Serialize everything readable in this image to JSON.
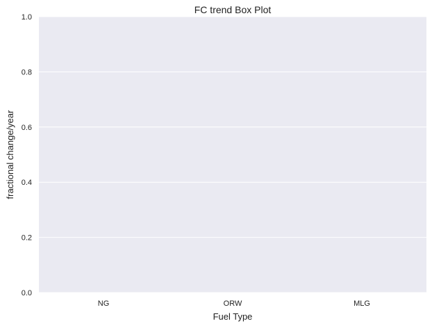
{
  "chart_data": {
    "type": "box",
    "title": "FC trend Box Plot",
    "xlabel": "Fuel Type",
    "ylabel": "fractional change/year",
    "categories": [
      "NG",
      "ORW",
      "MLG"
    ],
    "series": [],
    "ylim": [
      0.0,
      1.0
    ],
    "yticks": [
      "0.0",
      "0.2",
      "0.4",
      "0.6",
      "0.8",
      "1.0"
    ],
    "grid": true,
    "colors": {
      "plot_background": "#EAEAF2",
      "grid": "#FFFFFF",
      "text": "#222222"
    }
  }
}
